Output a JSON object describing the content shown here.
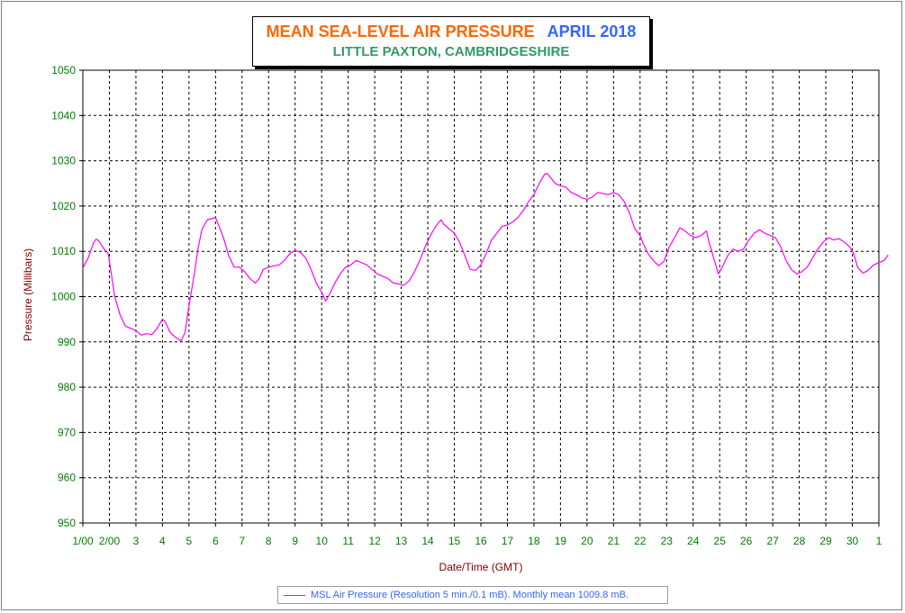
{
  "title": {
    "main": "MEAN SEA-LEVEL AIR PRESSURE",
    "date": "APRIL 2018",
    "subtitle": "LITTLE PAXTON, CAMBRIDGESHIRE"
  },
  "legend": {
    "label": "MSL Air Pressure (Resolution 5 min./0.1 mB). Monthly mean 1009.8 mB."
  },
  "colors": {
    "series": "#ff00ff",
    "axis_text": "#008000",
    "axis_title": "#800000",
    "title_main": "#ff6600",
    "title_date": "#3366ff",
    "subtitle": "#339966",
    "legend_text": "#3366ff"
  },
  "chart_data": {
    "type": "line",
    "title": "MEAN SEA-LEVEL AIR PRESSURE APRIL 2018",
    "subtitle": "LITTLE PAXTON, CAMBRIDGESHIRE",
    "xlabel": "Date/Time (GMT)",
    "ylabel": "Pressure (Millibars)",
    "ylim": [
      950,
      1050
    ],
    "yticks": [
      950,
      960,
      970,
      980,
      990,
      1000,
      1010,
      1020,
      1030,
      1040,
      1050
    ],
    "xlim": [
      1,
      31
    ],
    "xticks": [
      {
        "x": 1,
        "label": "1/00"
      },
      {
        "x": 2,
        "label": "2/00"
      },
      {
        "x": 3,
        "label": "3"
      },
      {
        "x": 4,
        "label": "4"
      },
      {
        "x": 5,
        "label": "5"
      },
      {
        "x": 6,
        "label": "6"
      },
      {
        "x": 7,
        "label": "7"
      },
      {
        "x": 8,
        "label": "8"
      },
      {
        "x": 9,
        "label": "9"
      },
      {
        "x": 10,
        "label": "10"
      },
      {
        "x": 11,
        "label": "11"
      },
      {
        "x": 12,
        "label": "12"
      },
      {
        "x": 13,
        "label": "13"
      },
      {
        "x": 14,
        "label": "14"
      },
      {
        "x": 15,
        "label": "15"
      },
      {
        "x": 16,
        "label": "16"
      },
      {
        "x": 17,
        "label": "17"
      },
      {
        "x": 18,
        "label": "18"
      },
      {
        "x": 19,
        "label": "19"
      },
      {
        "x": 20,
        "label": "20"
      },
      {
        "x": 21,
        "label": "21"
      },
      {
        "x": 22,
        "label": "22"
      },
      {
        "x": 23,
        "label": "23"
      },
      {
        "x": 24,
        "label": "24"
      },
      {
        "x": 25,
        "label": "25"
      },
      {
        "x": 26,
        "label": "26"
      },
      {
        "x": 27,
        "label": "27"
      },
      {
        "x": 28,
        "label": "28"
      },
      {
        "x": 29,
        "label": "29"
      },
      {
        "x": 30,
        "label": "30"
      },
      {
        "x": 31,
        "label": "1"
      }
    ],
    "grid": true,
    "legend_position": "bottom",
    "series": [
      {
        "name": "MSL Air Pressure (Resolution 5 min./0.1 mB). Monthly mean 1009.8 mB.",
        "color": "#ff00ff",
        "points": [
          [
            1.0,
            1006.3
          ],
          [
            1.2,
            1008.5
          ],
          [
            1.4,
            1011.8
          ],
          [
            1.5,
            1012.7
          ],
          [
            1.6,
            1012.3
          ],
          [
            1.8,
            1010.5
          ],
          [
            1.95,
            1009.6
          ],
          [
            2.05,
            1006.0
          ],
          [
            2.2,
            1000.0
          ],
          [
            2.4,
            996.0
          ],
          [
            2.6,
            993.5
          ],
          [
            2.8,
            993.0
          ],
          [
            3.0,
            992.5
          ],
          [
            3.2,
            991.5
          ],
          [
            3.4,
            991.8
          ],
          [
            3.6,
            991.6
          ],
          [
            3.8,
            993.0
          ],
          [
            4.0,
            995.0
          ],
          [
            4.1,
            994.5
          ],
          [
            4.3,
            992.0
          ],
          [
            4.5,
            991.0
          ],
          [
            4.7,
            990.2
          ],
          [
            4.85,
            992.0
          ],
          [
            5.0,
            998.0
          ],
          [
            5.2,
            1005.0
          ],
          [
            5.35,
            1011.0
          ],
          [
            5.5,
            1015.0
          ],
          [
            5.7,
            1017.0
          ],
          [
            5.85,
            1017.2
          ],
          [
            6.0,
            1017.5
          ],
          [
            6.1,
            1016.0
          ],
          [
            6.3,
            1013.0
          ],
          [
            6.5,
            1009.0
          ],
          [
            6.7,
            1006.5
          ],
          [
            6.9,
            1006.5
          ],
          [
            7.1,
            1005.5
          ],
          [
            7.3,
            1004.0
          ],
          [
            7.5,
            1003.0
          ],
          [
            7.65,
            1004.0
          ],
          [
            7.8,
            1006.0
          ],
          [
            8.0,
            1006.5
          ],
          [
            8.2,
            1006.8
          ],
          [
            8.4,
            1007.0
          ],
          [
            8.6,
            1008.0
          ],
          [
            8.8,
            1009.5
          ],
          [
            9.0,
            1010.2
          ],
          [
            9.2,
            1009.8
          ],
          [
            9.4,
            1008.5
          ],
          [
            9.6,
            1006.0
          ],
          [
            9.8,
            1003.0
          ],
          [
            10.0,
            1001.0
          ],
          [
            10.15,
            999.0
          ],
          [
            10.3,
            1000.5
          ],
          [
            10.5,
            1003.0
          ],
          [
            10.7,
            1005.0
          ],
          [
            10.9,
            1006.5
          ],
          [
            11.1,
            1007.0
          ],
          [
            11.3,
            1008.0
          ],
          [
            11.5,
            1007.5
          ],
          [
            11.7,
            1007.0
          ],
          [
            11.9,
            1006.0
          ],
          [
            12.1,
            1005.0
          ],
          [
            12.3,
            1004.5
          ],
          [
            12.5,
            1004.0
          ],
          [
            12.7,
            1003.0
          ],
          [
            12.9,
            1002.8
          ],
          [
            13.1,
            1002.5
          ],
          [
            13.3,
            1003.5
          ],
          [
            13.5,
            1005.5
          ],
          [
            13.7,
            1008.0
          ],
          [
            13.9,
            1011.0
          ],
          [
            14.1,
            1013.5
          ],
          [
            14.3,
            1015.5
          ],
          [
            14.5,
            1017.0
          ],
          [
            14.6,
            1016.0
          ],
          [
            14.8,
            1015.0
          ],
          [
            15.0,
            1014.0
          ],
          [
            15.2,
            1012.0
          ],
          [
            15.4,
            1009.0
          ],
          [
            15.6,
            1006.0
          ],
          [
            15.8,
            1005.8
          ],
          [
            16.0,
            1007.0
          ],
          [
            16.2,
            1009.5
          ],
          [
            16.4,
            1012.5
          ],
          [
            16.6,
            1014.0
          ],
          [
            16.8,
            1015.5
          ],
          [
            17.0,
            1015.8
          ],
          [
            17.2,
            1016.5
          ],
          [
            17.4,
            1017.5
          ],
          [
            17.6,
            1019.0
          ],
          [
            17.8,
            1021.0
          ],
          [
            18.0,
            1022.5
          ],
          [
            18.2,
            1025.0
          ],
          [
            18.4,
            1027.0
          ],
          [
            18.5,
            1027.2
          ],
          [
            18.6,
            1026.5
          ],
          [
            18.8,
            1025.0
          ],
          [
            19.0,
            1024.5
          ],
          [
            19.2,
            1024.2
          ],
          [
            19.4,
            1023.0
          ],
          [
            19.6,
            1022.5
          ],
          [
            19.8,
            1021.8
          ],
          [
            20.0,
            1021.5
          ],
          [
            20.2,
            1022.0
          ],
          [
            20.4,
            1023.0
          ],
          [
            20.6,
            1022.8
          ],
          [
            20.8,
            1022.5
          ],
          [
            21.0,
            1023.0
          ],
          [
            21.2,
            1022.5
          ],
          [
            21.4,
            1021.0
          ],
          [
            21.6,
            1018.5
          ],
          [
            21.8,
            1015.0
          ],
          [
            22.0,
            1013.5
          ],
          [
            22.1,
            1012.0
          ],
          [
            22.3,
            1009.5
          ],
          [
            22.5,
            1008.0
          ],
          [
            22.7,
            1006.8
          ],
          [
            22.9,
            1007.8
          ],
          [
            23.1,
            1011.0
          ],
          [
            23.3,
            1013.0
          ],
          [
            23.5,
            1015.2
          ],
          [
            23.7,
            1014.5
          ],
          [
            23.9,
            1013.5
          ],
          [
            24.1,
            1013.0
          ],
          [
            24.3,
            1013.5
          ],
          [
            24.5,
            1014.5
          ],
          [
            24.6,
            1012.0
          ],
          [
            24.8,
            1008.0
          ],
          [
            24.95,
            1005.0
          ],
          [
            25.1,
            1006.5
          ],
          [
            25.3,
            1009.0
          ],
          [
            25.5,
            1010.5
          ],
          [
            25.7,
            1010.0
          ],
          [
            25.9,
            1010.5
          ],
          [
            26.1,
            1012.5
          ],
          [
            26.3,
            1014.0
          ],
          [
            26.5,
            1014.8
          ],
          [
            26.7,
            1014.0
          ],
          [
            26.9,
            1013.5
          ],
          [
            27.1,
            1013.0
          ],
          [
            27.3,
            1011.0
          ],
          [
            27.5,
            1008.0
          ],
          [
            27.7,
            1006.0
          ],
          [
            27.9,
            1005.0
          ],
          [
            28.1,
            1005.5
          ],
          [
            28.3,
            1006.5
          ],
          [
            28.5,
            1008.5
          ],
          [
            28.7,
            1010.5
          ],
          [
            28.9,
            1012.0
          ],
          [
            29.1,
            1013.0
          ],
          [
            29.3,
            1012.5
          ],
          [
            29.5,
            1012.8
          ],
          [
            29.7,
            1012.0
          ],
          [
            29.9,
            1011.0
          ],
          [
            30.05,
            1009.5
          ],
          [
            30.2,
            1006.5
          ],
          [
            30.4,
            1005.2
          ],
          [
            30.6,
            1005.8
          ],
          [
            30.8,
            1007.0
          ],
          [
            31.0,
            1007.5
          ],
          [
            31.2,
            1008.0
          ],
          [
            31.35,
            1009.2
          ]
        ]
      }
    ]
  }
}
